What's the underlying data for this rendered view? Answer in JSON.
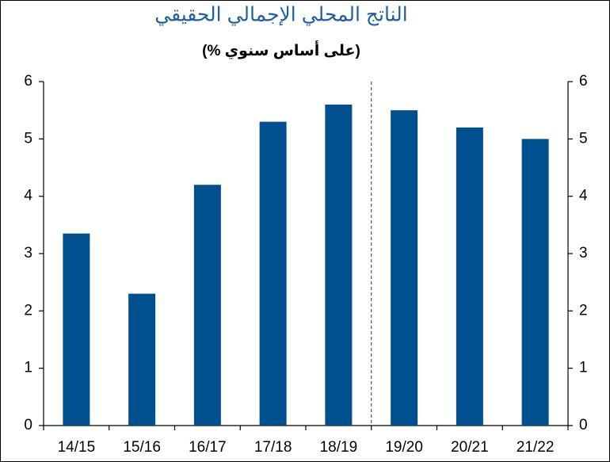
{
  "chart_data": {
    "type": "bar",
    "title": "الناتج المحلي الإجمالي الحقيقي",
    "subtitle": "(% على أساس سنوي)",
    "categories": [
      "14/15",
      "15/16",
      "16/17",
      "17/18",
      "18/19",
      "19/20",
      "20/21",
      "21/22"
    ],
    "values": [
      3.35,
      2.3,
      4.2,
      5.3,
      5.6,
      5.5,
      5.2,
      5.0
    ],
    "color": "#00508f",
    "ylim": [
      0,
      6
    ],
    "yticks": [
      0,
      1,
      2,
      3,
      4,
      5,
      6
    ],
    "y2lim": [
      0,
      6
    ],
    "y2ticks": [
      0,
      1,
      2,
      3,
      4,
      5,
      6
    ],
    "grid": false
  }
}
